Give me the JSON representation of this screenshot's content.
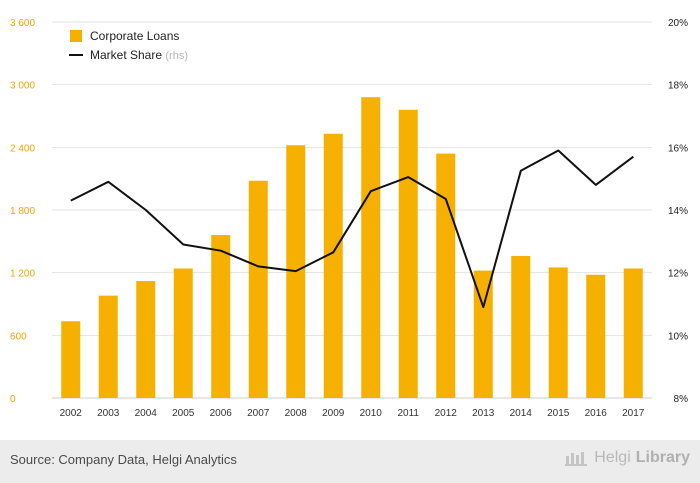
{
  "chart_data": {
    "type": "bar+line",
    "categories": [
      "2002",
      "2003",
      "2004",
      "2005",
      "2006",
      "2007",
      "2008",
      "2009",
      "2010",
      "2011",
      "2012",
      "2013",
      "2014",
      "2015",
      "2016",
      "2017"
    ],
    "series": [
      {
        "name": "Corporate Loans",
        "kind": "bar",
        "axis": "left",
        "color": "#f6b000",
        "values": [
          735,
          980,
          1120,
          1240,
          1560,
          2080,
          2420,
          2530,
          2880,
          2760,
          2340,
          1220,
          1360,
          1250,
          1180,
          1240
        ]
      },
      {
        "name": "Market Share",
        "legend_suffix": "(rhs)",
        "kind": "line",
        "axis": "right",
        "color": "#111111",
        "values": [
          14.3,
          14.9,
          14.0,
          12.9,
          12.7,
          12.2,
          12.05,
          12.65,
          14.6,
          15.05,
          14.35,
          10.9,
          15.25,
          15.9,
          14.8,
          15.7
        ]
      }
    ],
    "y_left": {
      "ticks": [
        "0",
        "600",
        "1 200",
        "1 800",
        "2 400",
        "3 000",
        "3 600"
      ],
      "min": 0,
      "max": 3600,
      "color": "#f0a500"
    },
    "y_right": {
      "ticks": [
        "8%",
        "10%",
        "12%",
        "14%",
        "16%",
        "18%",
        "20%"
      ],
      "min": 8,
      "max": 20
    },
    "grid": true,
    "legend_position": "top-left"
  },
  "footer": {
    "source": "Source: Company Data, Helgi Analytics",
    "brand_name": "Helgi",
    "brand_suffix": "Library"
  }
}
